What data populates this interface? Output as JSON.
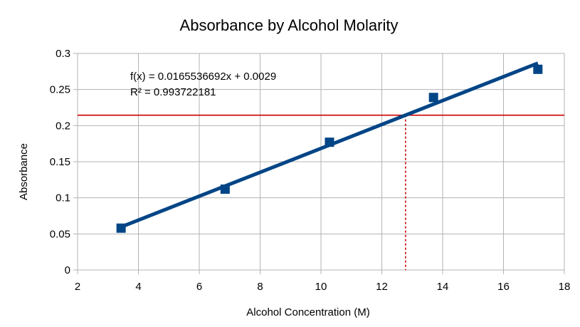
{
  "chart_data": {
    "type": "scatter",
    "title": "Absorbance by Alcohol Molarity",
    "xlabel": "Alcohol Concentration (M)",
    "ylabel": "Absorbance",
    "xlim": [
      2,
      18
    ],
    "ylim": [
      0,
      0.3
    ],
    "x_ticks": [
      2,
      4,
      6,
      8,
      10,
      12,
      14,
      16,
      18
    ],
    "y_ticks": [
      0,
      0.05,
      0.1,
      0.15,
      0.2,
      0.25,
      0.3
    ],
    "x_tick_labels": [
      "2",
      "4",
      "6",
      "8",
      "10",
      "12",
      "14",
      "16",
      "18"
    ],
    "y_tick_labels": [
      "0",
      "0.05",
      "0.1",
      "0.15",
      "0.2",
      "0.25",
      "0.3"
    ],
    "grid": true,
    "series": [
      {
        "x": [
          3.43,
          6.85,
          10.28,
          13.7,
          17.13
        ],
        "y": [
          0.058,
          0.112,
          0.177,
          0.239,
          0.278
        ],
        "color": "#004586"
      }
    ],
    "trendline": {
      "slope": 0.0165536692,
      "intercept": 0.0029,
      "x_range": [
        3.43,
        17.13
      ],
      "color": "#004586"
    },
    "equation_label": "f(x) = 0.0165536692x + 0.0029",
    "r2_label": "R² = 0.993722181",
    "reference_lines": {
      "absorbance": 0.2145,
      "concentration": 12.78,
      "color": "#cc0000"
    }
  }
}
